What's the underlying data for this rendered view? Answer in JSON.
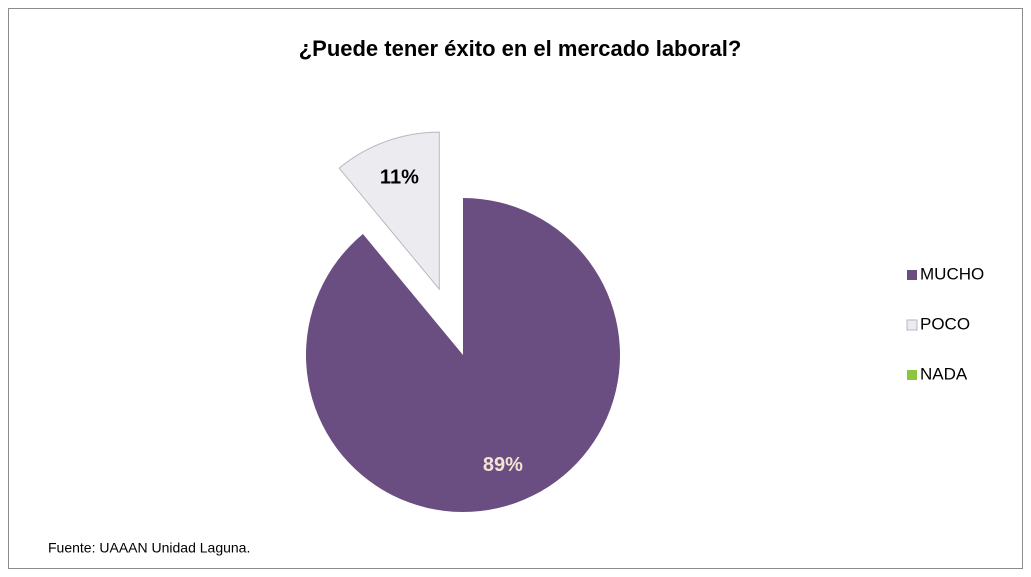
{
  "chart_data": {
    "type": "pie",
    "title": "¿Puede tener éxito en el mercado laboral?",
    "categories": [
      "MUCHO",
      "POCO",
      "NADA"
    ],
    "values": [
      89,
      11,
      0
    ],
    "value_labels": [
      "89%",
      "11%",
      null
    ],
    "colors": [
      "#6a4e82",
      "#ececf0",
      "#8cc63f"
    ],
    "legend": "right",
    "source": "Fuente: UAAAN Unidad Laguna."
  }
}
